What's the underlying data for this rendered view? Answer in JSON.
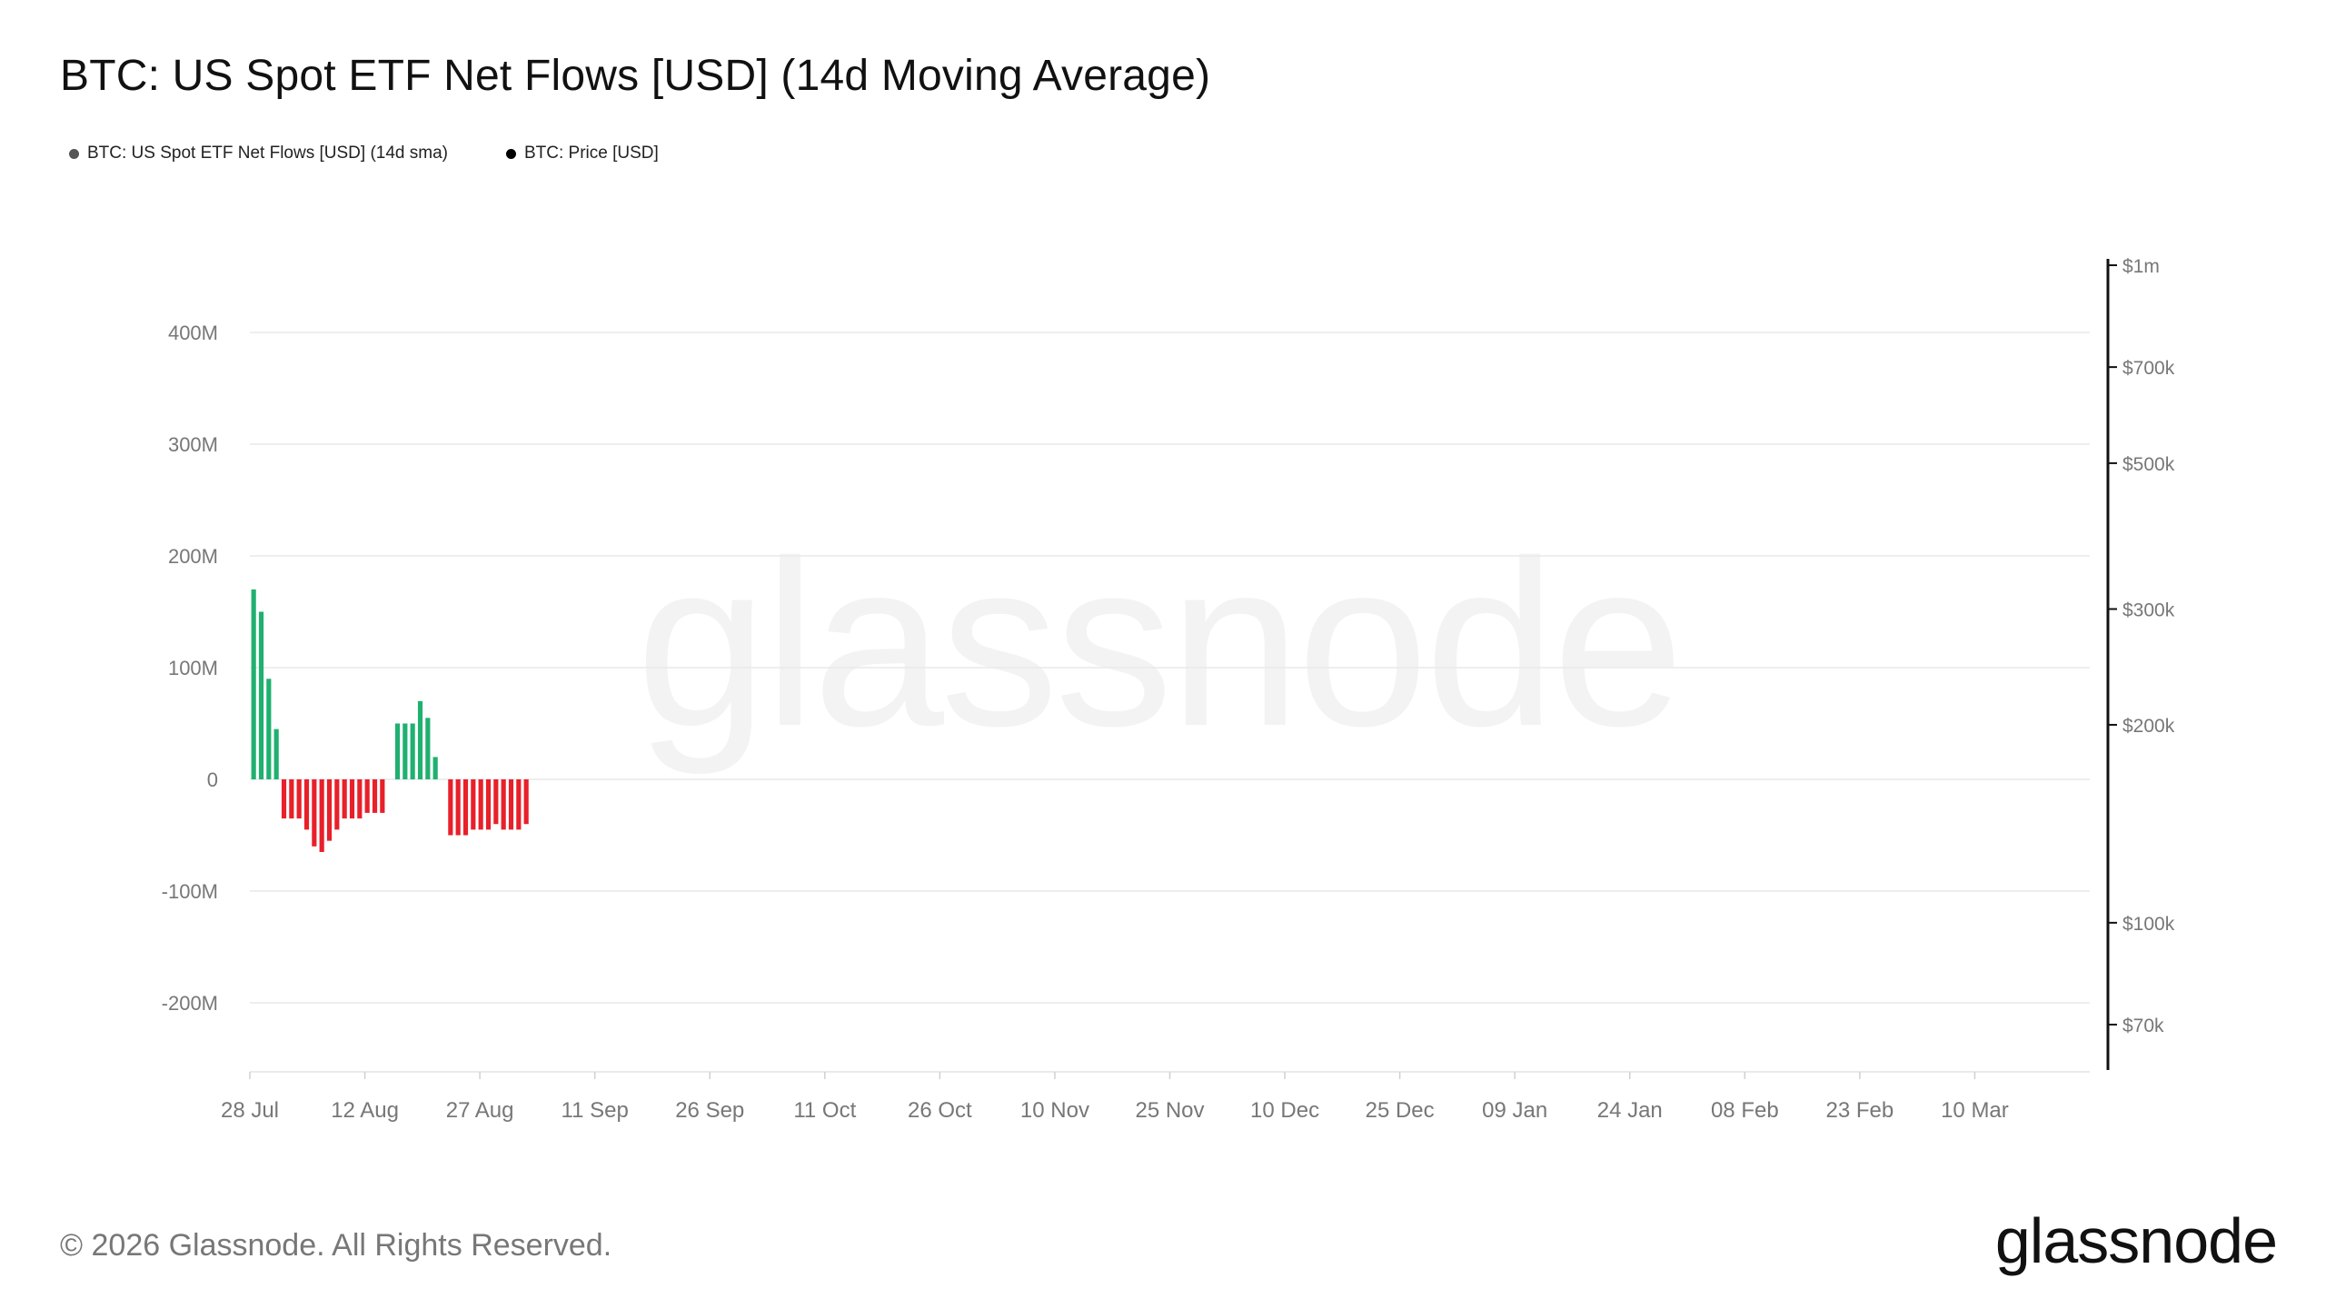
{
  "page": {
    "title": "BTC: US Spot ETF Net Flows [USD] (14d Moving Average)",
    "copyright": "© 2026 Glassnode. All Rights Reserved.",
    "brand_logo": "glassnode",
    "watermark": "glassnode"
  },
  "legend": [
    {
      "label": "BTC: US Spot ETF Net Flows [USD] (14d sma)",
      "color": "#555555"
    },
    {
      "label": "BTC: Price [USD]",
      "color": "#000000"
    }
  ],
  "colors": {
    "positive": "#20b070",
    "negative": "#e8202a",
    "price_line": "#111111",
    "grid": "#e9e9e9",
    "axis_text": "#777777"
  },
  "chart_data": {
    "type": "bar",
    "title": "BTC: US Spot ETF Net Flows [USD] (14d Moving Average)",
    "xlabel": "",
    "ylabel": "",
    "y_left": {
      "range": [
        -260,
        440
      ],
      "unit": "M USD",
      "ticks": [
        400,
        300,
        200,
        100,
        0,
        -100,
        -200
      ],
      "tick_labels": [
        "400M",
        "300M",
        "200M",
        "100M",
        "0",
        "-100M",
        "-200M"
      ]
    },
    "y_right": {
      "scale": "log",
      "range": [
        55000,
        1000000
      ],
      "ticks": [
        1000000,
        700000,
        500000,
        300000,
        200000,
        100000,
        70000
      ],
      "tick_labels": [
        "$1m",
        "$700k",
        "$500k",
        "$300k",
        "$200k",
        "$100k",
        "$70k"
      ]
    },
    "x_range": [
      0,
      240
    ],
    "x_ticks": [
      {
        "day": 0,
        "label": "28 Jul"
      },
      {
        "day": 15,
        "label": "12 Aug"
      },
      {
        "day": 30,
        "label": "27 Aug"
      },
      {
        "day": 45,
        "label": "11 Sep"
      },
      {
        "day": 60,
        "label": "26 Sep"
      },
      {
        "day": 75,
        "label": "11 Oct"
      },
      {
        "day": 90,
        "label": "26 Oct"
      },
      {
        "day": 105,
        "label": "10 Nov"
      },
      {
        "day": 120,
        "label": "25 Nov"
      },
      {
        "day": 135,
        "label": "10 Dec"
      },
      {
        "day": 150,
        "label": "25 Dec"
      },
      {
        "day": 165,
        "label": "09 Jan"
      },
      {
        "day": 180,
        "label": "24 Jan"
      },
      {
        "day": 195,
        "label": "08 Feb"
      },
      {
        "day": 210,
        "label": "23 Feb"
      },
      {
        "day": 225,
        "label": "10 Mar"
      }
    ],
    "series": [
      {
        "name": "BTC: US Spot ETF Net Flows [USD] (14d sma)",
        "type": "bar",
        "unit": "M USD",
        "values": [
          170,
          150,
          90,
          45,
          -35,
          -35,
          -35,
          -45,
          -60,
          -65,
          -55,
          -45,
          -35,
          -35,
          -35,
          -30,
          -30,
          -30,
          0,
          50,
          50,
          50,
          70,
          55,
          20,
          0,
          -50,
          -50,
          -50,
          -45,
          -45,
          -45,
          -40,
          -45,
          -45,
          -45,
          -40,
          0,
          0,
          0,
          0,
          0,
          0,
          0,
          0,
          0,
          0,
          0,
          0,
          0,
          0,
          0,
          0,
          0,
          0,
          0,
          0,
          0,
          0,
          0,
          0,
          0,
          0,
          0,
          0,
          0,
          0,
          0,
          0,
          0,
          0,
          0,
          0,
          0,
          0,
          0,
          0,
          0,
          0,
          0,
          0,
          0,
          0,
          0,
          0,
          0,
          0,
          0,
          0,
          0,
          0,
          0,
          0,
          0,
          0,
          0,
          0,
          0,
          0,
          0,
          0,
          0,
          0,
          0,
          0,
          0,
          0,
          0,
          0,
          0,
          0,
          0,
          0,
          0,
          0,
          0,
          0,
          0,
          0,
          0,
          0,
          0,
          0,
          0,
          0,
          0,
          0,
          0,
          0,
          0,
          0,
          0,
          0,
          0,
          0,
          0,
          0,
          0,
          0,
          0,
          0,
          0,
          0,
          0,
          0,
          0,
          0,
          0,
          0,
          0,
          0,
          0,
          0,
          0,
          0,
          0,
          0,
          0,
          0,
          0,
          0,
          0,
          0,
          0,
          0,
          0,
          0,
          0,
          0,
          0,
          0,
          0,
          0,
          0,
          0,
          0,
          0,
          0,
          0,
          0,
          0,
          0,
          0,
          0,
          0,
          0,
          0,
          0,
          0,
          0,
          0,
          0,
          0,
          0,
          0,
          0,
          0,
          0,
          0,
          0,
          0,
          0,
          0,
          0,
          0,
          0,
          0,
          0,
          0,
          0,
          0,
          0,
          0,
          0,
          0,
          0,
          0,
          0,
          0,
          0,
          0,
          0,
          0,
          0,
          0,
          0,
          0,
          0,
          0,
          0,
          0,
          0,
          0,
          0,
          0,
          0,
          0,
          0,
          0,
          0,
          0,
          0,
          0
        ]
      },
      {
        "name": "BTC: Price [USD]",
        "type": "line",
        "unit": "USD",
        "values": []
      }
    ]
  }
}
